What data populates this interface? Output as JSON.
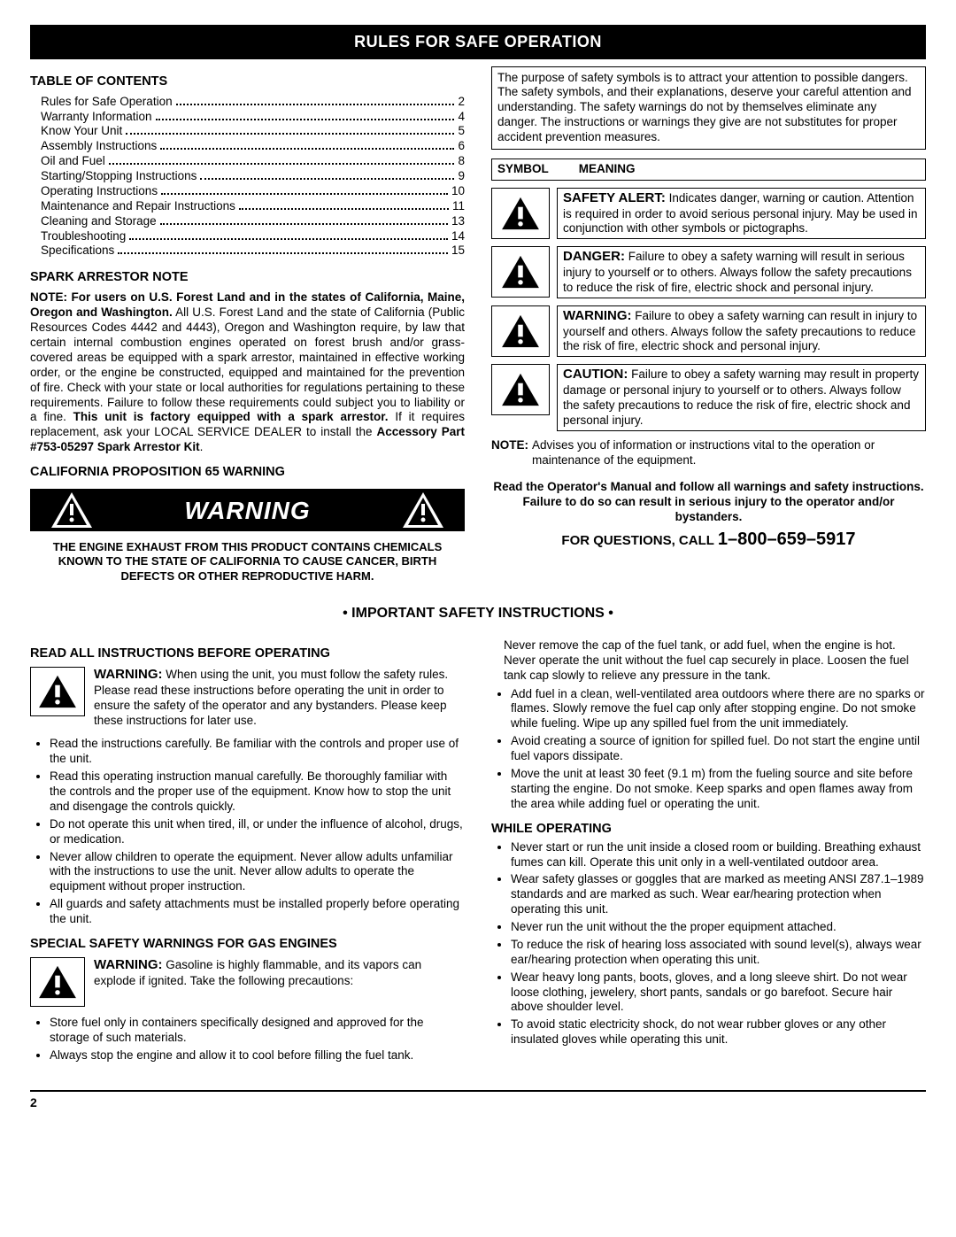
{
  "banner": "RULES FOR SAFE OPERATION",
  "toc_title": "TABLE OF CONTENTS",
  "toc": [
    {
      "label": "Rules for Safe Operation",
      "page": "2"
    },
    {
      "label": "Warranty Information",
      "page": "4"
    },
    {
      "label": "Know Your Unit",
      "page": "5"
    },
    {
      "label": "Assembly Instructions",
      "page": "6"
    },
    {
      "label": "Oil and Fuel",
      "page": "8"
    },
    {
      "label": "Starting/Stopping Instructions",
      "page": "9"
    },
    {
      "label": "Operating Instructions",
      "page": "10"
    },
    {
      "label": "Maintenance and Repair Instructions",
      "page": "11"
    },
    {
      "label": "Cleaning and Storage",
      "page": "13"
    },
    {
      "label": "Troubleshooting",
      "page": "14"
    },
    {
      "label": "Specifications",
      "page": "15"
    }
  ],
  "spark_title": "SPARK ARRESTOR NOTE",
  "spark_note_lead": "NOTE: For users on U.S. Forest Land and in the states of California, Maine, Oregon and Washington.",
  "spark_note_body_1": " All U.S. Forest Land and the state of California (Public Resources Codes 4442 and 4443), Oregon and Washington require, by law that certain internal combustion engines operated on forest brush and/or grass-covered areas be equipped with a spark arrestor, maintained in effective working order, or the engine be constructed, equipped and maintained for the prevention of fire. Check with your state or local authorities for regulations pertaining to these requirements. Failure to follow these requirements could subject you to liability or a fine. ",
  "spark_note_bold_2": "This unit is factory equipped with a spark arrestor.",
  "spark_note_body_2": " If it requires replacement, ask your LOCAL SERVICE DEALER to install the ",
  "spark_note_bold_3": "Accessory Part #753-05297 Spark Arrestor Kit",
  "spark_note_tail": ".",
  "prop65_title": "CALIFORNIA PROPOSITION 65 WARNING",
  "warn_banner_word": "WARNING",
  "prop65_text": "THE ENGINE EXHAUST FROM THIS PRODUCT CONTAINS CHEMICALS KNOWN TO THE STATE OF CALIFORNIA TO CAUSE CANCER, BIRTH DEFECTS OR OTHER REPRODUCTIVE HARM.",
  "purpose_text": "The purpose of safety symbols is to attract your attention to possible dangers. The safety symbols, and their explanations, deserve your careful attention and understanding. The safety warnings do not by themselves eliminate any danger. The instructions or warnings they give are not substitutes for proper accident prevention measures.",
  "sym_col1": "SYMBOL",
  "sym_col2": "MEANING",
  "sym_rows": [
    {
      "lead": "SAFETY ALERT:",
      "text": " Indicates danger, warning or caution. Attention is required in order to avoid serious personal injury. May be used in conjunction with other symbols or pictographs."
    },
    {
      "lead": "DANGER:",
      "text": " Failure to obey a safety warning will result in serious injury to yourself or to others. Always follow the safety precautions to reduce the risk of fire, electric shock and personal injury."
    },
    {
      "lead": "WARNING:",
      "text": " Failure to obey a safety warning can result in injury to yourself and others. Always follow the safety precautions to reduce the risk of fire, electric shock and personal injury."
    },
    {
      "lead": "CAUTION:",
      "text": " Failure to obey a safety warning may result in property damage or personal injury to yourself or to others. Always follow the safety precautions to reduce the risk of fire, electric shock and personal injury."
    }
  ],
  "note_lead": "NOTE:",
  "note_text": "  Advises you of information or instructions vital to the operation or maintenance of the equipment.",
  "read_manual": "Read the Operator's Manual and follow all warnings and safety instructions. Failure to do so can result in serious injury to the operator and/or bystanders.",
  "phone_prefix": "FOR QUESTIONS, CALL ",
  "phone_number": "1–800–659–5917",
  "instr_heading": "• IMPORTANT SAFETY INSTRUCTIONS •",
  "read_all": "READ ALL INSTRUCTIONS BEFORE OPERATING",
  "inline_warn_1_lead": "WARNING:",
  "inline_warn_1_text": " When using the unit, you must follow the safety rules. Please read these instructions before operating the unit in order to ensure the safety of the operator and any bystanders. Please keep these instructions for later use.",
  "bullets_left_1": [
    "Read the instructions carefully. Be familiar with the controls and proper use of the unit.",
    "Read this operating instruction manual carefully. Be thoroughly familiar with the controls and the proper use of the equipment. Know how to stop the unit and disengage the controls quickly.",
    "Do not operate this unit when tired, ill, or under the influence of alcohol, drugs, or medication.",
    "Never allow children to operate the equipment. Never allow adults unfamiliar with the instructions to use the unit. Never allow adults to operate the equipment without proper instruction.",
    "All guards and safety attachments must be installed properly before operating the unit."
  ],
  "gas_title": "SPECIAL SAFETY WARNINGS FOR GAS ENGINES",
  "inline_warn_2_lead": "WARNING:",
  "inline_warn_2_text": " Gasoline is highly flammable, and its vapors can explode if ignited. Take the following precautions:",
  "bullets_left_2": [
    "Store fuel only in containers specifically designed and approved for the storage of such materials.",
    "Always stop the engine and allow it to cool before filling the fuel tank."
  ],
  "paras_right_top": [
    "Never remove the cap of the fuel tank, or add fuel, when the engine is hot. Never operate the unit without the fuel cap securely in place. Loosen the fuel tank cap slowly to relieve any pressure in the tank."
  ],
  "bullets_right_1": [
    "Add fuel in a clean, well-ventilated area outdoors where there are no sparks or flames. Slowly remove the fuel cap only after stopping engine. Do not smoke while fueling. Wipe up any spilled fuel from the unit immediately.",
    "Avoid creating a source of ignition for spilled fuel. Do not start the engine until fuel vapors dissipate.",
    "Move the unit at least 30 feet (9.1 m) from the fueling source and site before starting the engine. Do not smoke. Keep sparks and open flames away from the area while adding fuel or operating the unit."
  ],
  "while_title": "WHILE OPERATING",
  "bullets_right_2": [
    "Never start or run the unit inside a closed room or building. Breathing exhaust fumes can kill. Operate this unit only in a well-ventilated outdoor area.",
    "Wear safety glasses or goggles that are marked as meeting ANSI Z87.1–1989 standards and are marked as such. Wear ear/hearing protection when operating this unit.",
    "Never run the unit without the the proper equipment attached.",
    "To reduce the risk of hearing loss associated with sound level(s), always wear ear/hearing protection when operating this unit.",
    "Wear heavy long pants, boots, gloves, and a long sleeve shirt. Do not wear loose clothing, jewelery, short pants, sandals or go barefoot. Secure hair above shoulder level.",
    "To avoid static electricity shock, do not wear rubber gloves or any other insulated gloves while operating this unit."
  ],
  "page_number": "2",
  "colors": {
    "fg": "#000000",
    "bg": "#ffffff"
  }
}
